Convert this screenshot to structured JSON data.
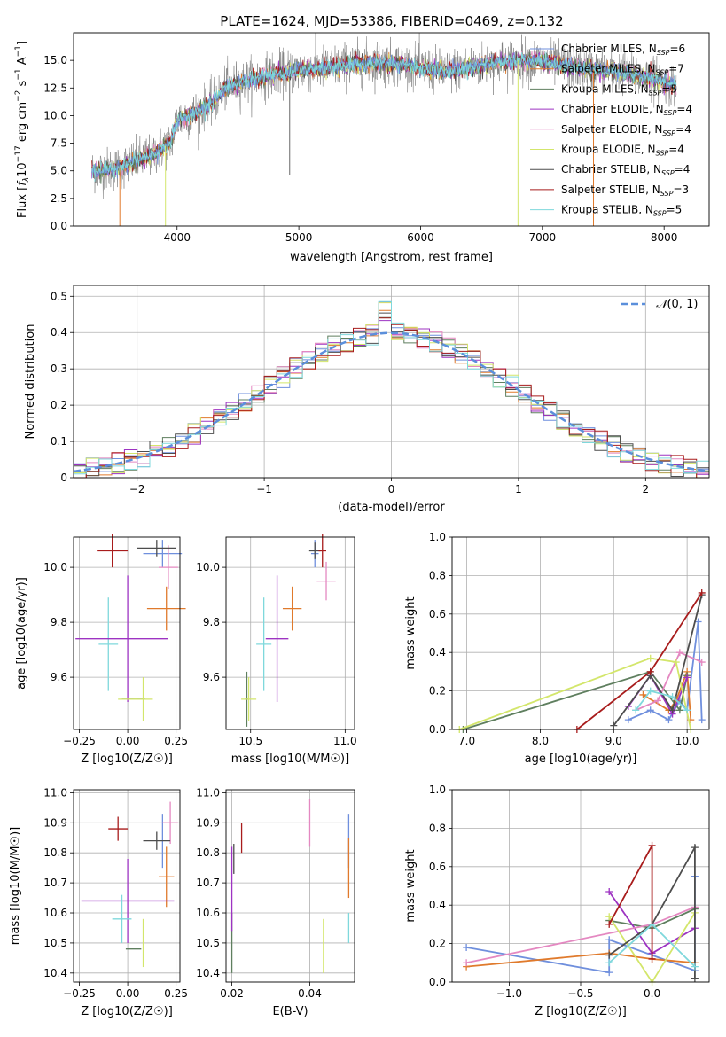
{
  "figure_title": "PLATE=1624, MJD=53386, FIBERID=0469, z=0.132",
  "colors": {
    "CM": "#6f8fdd",
    "SM": "#e07a2c",
    "KM": "#5f7f5f",
    "CE": "#9d33c2",
    "SE": "#e488c1",
    "KE": "#d3e66b",
    "CS": "#4d4d4d",
    "SS": "#a81c1c",
    "KS": "#7fd8dc",
    "norm": "#5b8fdb",
    "grid": "#b0b0b0"
  },
  "chart_data": [
    {
      "id": "spectrum",
      "type": "line",
      "xlabel": "wavelength [Angstrom, rest frame]",
      "ylabel": "Flux [f_λ 10^-17 erg cm^-2 s^-1 A^-1]",
      "xlim": [
        3150,
        8370
      ],
      "ylim": [
        0,
        17.5
      ],
      "xticks": [
        4000,
        5000,
        6000,
        7000,
        8000
      ],
      "yticks": [
        0.0,
        2.5,
        5.0,
        7.5,
        10.0,
        12.5,
        15.0
      ],
      "grid": false,
      "legend": "top-right",
      "series": [
        {
          "name": "Chabrier MILES, N_SSP=6",
          "color_key": "CM"
        },
        {
          "name": "Salpeter MILES, N_SSP=7",
          "color_key": "SM"
        },
        {
          "name": "Kroupa MILES, N_SSP=5",
          "color_key": "KM"
        },
        {
          "name": "Chabrier ELODIE, N_SSP=4",
          "color_key": "CE"
        },
        {
          "name": "Salpeter ELODIE, N_SSP=4",
          "color_key": "SE"
        },
        {
          "name": "Kroupa ELODIE, N_SSP=4",
          "color_key": "KE"
        },
        {
          "name": "Chabrier STELIB, N_SSP=4",
          "color_key": "CS"
        },
        {
          "name": "Salpeter STELIB, N_SSP=3",
          "color_key": "SS"
        },
        {
          "name": "Kroupa STELIB, N_SSP=5",
          "color_key": "KS"
        }
      ],
      "continuum": [
        [
          3300,
          5.0
        ],
        [
          3500,
          5.2
        ],
        [
          3700,
          6.0
        ],
        [
          3800,
          6.5
        ],
        [
          3950,
          7.6
        ],
        [
          4000,
          9.6
        ],
        [
          4150,
          10.2
        ],
        [
          4300,
          11.2
        ],
        [
          4400,
          12.6
        ],
        [
          4600,
          13.2
        ],
        [
          4800,
          13.8
        ],
        [
          5000,
          14.1
        ],
        [
          5200,
          14.3
        ],
        [
          5400,
          14.6
        ],
        [
          5600,
          14.8
        ],
        [
          5800,
          14.7
        ],
        [
          6000,
          14.3
        ],
        [
          6200,
          14.0
        ],
        [
          6500,
          14.6
        ],
        [
          6800,
          15.0
        ],
        [
          7000,
          14.9
        ],
        [
          7300,
          14.3
        ],
        [
          7600,
          14.0
        ],
        [
          7900,
          13.4
        ],
        [
          8100,
          12.7
        ]
      ]
    },
    {
      "id": "residuals",
      "type": "histogram",
      "xlabel": "(data-model)/error",
      "ylabel": "Normed distribution",
      "xlim": [
        -2.5,
        2.5
      ],
      "ylim": [
        0,
        0.53
      ],
      "xticks": [
        -2,
        -1,
        0,
        1,
        2
      ],
      "yticks": [
        0.0,
        0.1,
        0.2,
        0.3,
        0.4,
        0.5
      ],
      "grid": true,
      "legend": "top-right",
      "legend_label": "N(0,1)",
      "bin_width": 0.1,
      "reference_curve": "gaussian mean 0 sigma 1"
    },
    {
      "id": "age_vs_Z",
      "type": "errorbar",
      "xlabel": "Z [log10(Z/Z☉)]",
      "ylabel": "age [log10(age/yr)]",
      "xlim": [
        -0.28,
        0.27
      ],
      "ylim": [
        9.41,
        10.11
      ],
      "xticks": [
        -0.25,
        0.0,
        0.25
      ],
      "yticks": [
        9.6,
        9.8,
        10.0
      ],
      "grid": true,
      "points": [
        {
          "k": "CM",
          "x": 0.18,
          "y": 10.05,
          "xe": 0.1,
          "ye": 0.05
        },
        {
          "k": "SM",
          "x": 0.2,
          "y": 9.85,
          "xe": 0.1,
          "ye": 0.08
        },
        {
          "k": "KM",
          "x": 0.03,
          "y": 9.52,
          "xe": 0.06,
          "ye": 0.0
        },
        {
          "k": "CE",
          "x": 0.0,
          "y": 9.74,
          "xe": 0.0,
          "ye": 0.23
        },
        {
          "k": "SE",
          "x": 0.21,
          "y": 10.0,
          "xe": 0.05,
          "ye": 0.08
        },
        {
          "k": "KE",
          "x": 0.08,
          "y": 9.52,
          "xe": 0.05,
          "ye": 0.08
        },
        {
          "k": "CS",
          "x": 0.15,
          "y": 10.07,
          "xe": 0.1,
          "ye": 0.03
        },
        {
          "k": "SS",
          "x": -0.08,
          "y": 10.06,
          "xe": 0.08,
          "ye": 0.06
        },
        {
          "k": "KS",
          "x": -0.1,
          "y": 9.72,
          "xe": 0.05,
          "ye": 0.17
        },
        {
          "k": "CE",
          "x": -0.03,
          "y": 9.74,
          "xe": 0.24,
          "ye": 0.0
        },
        {
          "k": "KE",
          "x": 0.0,
          "y": 9.52,
          "xe": 0.05,
          "ye": 0.0
        }
      ]
    },
    {
      "id": "age_vs_mass",
      "type": "errorbar",
      "xlabel": "mass [log10(M/M☉)]",
      "ylabel": "",
      "xlim": [
        10.37,
        11.05
      ],
      "ylim": [
        9.41,
        10.11
      ],
      "xticks": [
        10.5,
        11.0
      ],
      "yticks": [
        9.6,
        9.8,
        10.0
      ],
      "grid": true,
      "points": [
        {
          "k": "CM",
          "x": 10.84,
          "y": 10.05,
          "xe": 0.02,
          "ye": 0.05
        },
        {
          "k": "SM",
          "x": 10.72,
          "y": 9.85,
          "xe": 0.05,
          "ye": 0.08
        },
        {
          "k": "KM",
          "x": 10.48,
          "y": 9.52,
          "xe": 0.01,
          "ye": 0.1
        },
        {
          "k": "CE",
          "x": 10.64,
          "y": 9.74,
          "xe": 0.06,
          "ye": 0.23
        },
        {
          "k": "SE",
          "x": 10.9,
          "y": 9.95,
          "xe": 0.05,
          "ye": 0.07
        },
        {
          "k": "KE",
          "x": 10.49,
          "y": 9.52,
          "xe": 0.04,
          "ye": 0.08
        },
        {
          "k": "CS",
          "x": 10.84,
          "y": 10.06,
          "xe": 0.03,
          "ye": 0.03
        },
        {
          "k": "SS",
          "x": 10.88,
          "y": 10.06,
          "xe": 0.02,
          "ye": 0.06
        },
        {
          "k": "KS",
          "x": 10.57,
          "y": 9.72,
          "xe": 0.04,
          "ye": 0.17
        }
      ]
    },
    {
      "id": "massweight_vs_age",
      "type": "line",
      "xlabel": "age [log10(age/yr)]",
      "ylabel": "mass weight",
      "xlim": [
        6.8,
        10.3
      ],
      "ylim": [
        0.0,
        1.0
      ],
      "xticks": [
        7,
        8,
        9,
        10
      ],
      "yticks": [
        0.0,
        0.2,
        0.4,
        0.6,
        0.8,
        1.0
      ],
      "grid": true,
      "series": [
        {
          "k": "CM",
          "pts": [
            [
              9.2,
              0.05
            ],
            [
              9.5,
              0.1
            ],
            [
              9.75,
              0.05
            ],
            [
              9.9,
              0.15
            ],
            [
              10.0,
              0.1
            ],
            [
              10.15,
              0.56
            ],
            [
              10.2,
              0.05
            ]
          ]
        },
        {
          "k": "SM",
          "pts": [
            [
              9.4,
              0.18
            ],
            [
              9.75,
              0.1
            ],
            [
              9.85,
              0.15
            ],
            [
              10.0,
              0.3
            ],
            [
              10.05,
              0.05
            ]
          ]
        },
        {
          "k": "KM",
          "pts": [
            [
              6.95,
              0.0
            ],
            [
              9.5,
              0.3
            ],
            [
              9.9,
              0.1
            ],
            [
              10.0,
              0.28
            ]
          ]
        },
        {
          "k": "CE",
          "pts": [
            [
              9.2,
              0.12
            ],
            [
              9.5,
              0.28
            ],
            [
              9.8,
              0.08
            ],
            [
              10.0,
              0.27
            ]
          ]
        },
        {
          "k": "SE",
          "pts": [
            [
              9.3,
              0.1
            ],
            [
              9.6,
              0.15
            ],
            [
              9.9,
              0.4
            ],
            [
              10.2,
              0.35
            ]
          ]
        },
        {
          "k": "KE",
          "pts": [
            [
              6.9,
              0.0
            ],
            [
              9.5,
              0.37
            ],
            [
              9.85,
              0.35
            ],
            [
              10.05,
              0.0
            ]
          ]
        },
        {
          "k": "CS",
          "pts": [
            [
              9.0,
              0.02
            ],
            [
              9.5,
              0.28
            ],
            [
              9.8,
              0.1
            ],
            [
              10.2,
              0.7
            ]
          ]
        },
        {
          "k": "SS",
          "pts": [
            [
              8.5,
              0.0
            ],
            [
              9.5,
              0.3
            ],
            [
              10.2,
              0.71
            ]
          ]
        },
        {
          "k": "KS",
          "pts": [
            [
              9.3,
              0.1
            ],
            [
              9.5,
              0.2
            ],
            [
              9.8,
              0.17
            ],
            [
              10.0,
              0.1
            ]
          ]
        }
      ]
    },
    {
      "id": "mass_vs_Z",
      "type": "errorbar",
      "xlabel": "Z [log10(Z/Z☉)]",
      "ylabel": "mass [log10(M/M☉)]",
      "xlim": [
        -0.28,
        0.27
      ],
      "ylim": [
        10.37,
        11.01
      ],
      "xticks": [
        -0.25,
        0.0,
        0.25
      ],
      "yticks": [
        10.4,
        10.5,
        10.6,
        10.7,
        10.8,
        10.9,
        11.0
      ],
      "grid": true,
      "points": [
        {
          "k": "CM",
          "x": 0.18,
          "y": 10.84,
          "xe": 0.0,
          "ye": 0.09
        },
        {
          "k": "SM",
          "x": 0.2,
          "y": 10.72,
          "xe": 0.04,
          "ye": 0.1
        },
        {
          "k": "KM",
          "x": 0.03,
          "y": 10.48,
          "xe": 0.04,
          "ye": 0.0
        },
        {
          "k": "CE",
          "x": 0.0,
          "y": 10.64,
          "xe": 0.24,
          "ye": 0.14
        },
        {
          "k": "SE",
          "x": 0.22,
          "y": 10.9,
          "xe": 0.04,
          "ye": 0.07
        },
        {
          "k": "KE",
          "x": 0.08,
          "y": 10.5,
          "xe": 0.0,
          "ye": 0.08
        },
        {
          "k": "CS",
          "x": 0.15,
          "y": 10.84,
          "xe": 0.07,
          "ye": 0.03
        },
        {
          "k": "SS",
          "x": -0.05,
          "y": 10.88,
          "xe": 0.05,
          "ye": 0.04
        },
        {
          "k": "KS",
          "x": -0.03,
          "y": 10.58,
          "xe": 0.05,
          "ye": 0.08
        }
      ]
    },
    {
      "id": "mass_vs_ebv",
      "type": "errorbar",
      "xlabel": "E(B-V)",
      "ylabel": "",
      "xlim": [
        0.0185,
        0.0515
      ],
      "ylim": [
        10.37,
        11.01
      ],
      "xticks": [
        0.02,
        0.04
      ],
      "yticks": [
        10.4,
        10.5,
        10.6,
        10.7,
        10.8,
        10.9,
        11.0
      ],
      "grid": true,
      "points": [
        {
          "k": "CM",
          "x": 0.05,
          "y": 10.84,
          "xe": 0,
          "ye": 0.09
        },
        {
          "k": "SM",
          "x": 0.05,
          "y": 10.75,
          "xe": 0,
          "ye": 0.1
        },
        {
          "k": "KM",
          "x": 0.02,
          "y": 10.5,
          "xe": 0,
          "ye": 0.1
        },
        {
          "k": "CE",
          "x": 0.02,
          "y": 10.68,
          "xe": 0,
          "ye": 0.14
        },
        {
          "k": "SE",
          "x": 0.04,
          "y": 10.9,
          "xe": 0,
          "ye": 0.08
        },
        {
          "k": "KE",
          "x": 0.0435,
          "y": 10.49,
          "xe": 0,
          "ye": 0.09
        },
        {
          "k": "CS",
          "x": 0.0205,
          "y": 10.78,
          "xe": 0,
          "ye": 0.05
        },
        {
          "k": "SS",
          "x": 0.0225,
          "y": 10.85,
          "xe": 0,
          "ye": 0.05
        },
        {
          "k": "KS",
          "x": 0.05,
          "y": 10.55,
          "xe": 0,
          "ye": 0.05
        }
      ]
    },
    {
      "id": "massweight_vs_Z",
      "type": "line",
      "xlabel": "Z [log10(Z/Z☉)]",
      "ylabel": "mass weight",
      "xlim": [
        -1.4,
        0.4
      ],
      "ylim": [
        0.0,
        1.0
      ],
      "xticks": [
        -1.0,
        -0.5,
        0.0
      ],
      "yticks": [
        0.0,
        0.2,
        0.4,
        0.6,
        0.8,
        1.0
      ],
      "grid": true,
      "series": [
        {
          "k": "CM",
          "pts": [
            [
              -1.3,
              0.18
            ],
            [
              -0.3,
              0.05
            ],
            [
              -0.3,
              0.22
            ],
            [
              0.3,
              0.06
            ],
            [
              0.3,
              0.55
            ]
          ]
        },
        {
          "k": "SM",
          "pts": [
            [
              -1.3,
              0.08
            ],
            [
              -0.3,
              0.15
            ],
            [
              0.0,
              0.12
            ],
            [
              0.3,
              0.1
            ]
          ]
        },
        {
          "k": "KM",
          "pts": [
            [
              -0.3,
              0.32
            ],
            [
              0.0,
              0.28
            ],
            [
              0.3,
              0.38
            ]
          ]
        },
        {
          "k": "CE",
          "pts": [
            [
              -0.3,
              0.47
            ],
            [
              0.0,
              0.15
            ],
            [
              0.3,
              0.28
            ]
          ]
        },
        {
          "k": "SE",
          "pts": [
            [
              -1.3,
              0.1
            ],
            [
              0.0,
              0.3
            ],
            [
              0.3,
              0.39
            ]
          ]
        },
        {
          "k": "KE",
          "pts": [
            [
              -0.3,
              0.34
            ],
            [
              0.0,
              0.0
            ],
            [
              0.3,
              0.36
            ]
          ]
        },
        {
          "k": "CS",
          "pts": [
            [
              -0.3,
              0.14
            ],
            [
              0.0,
              0.3
            ],
            [
              0.3,
              0.7
            ],
            [
              0.3,
              0.02
            ]
          ]
        },
        {
          "k": "SS",
          "pts": [
            [
              -0.3,
              0.3
            ],
            [
              0.0,
              0.71
            ],
            [
              0.0,
              0.12
            ]
          ]
        },
        {
          "k": "KS",
          "pts": [
            [
              -0.3,
              0.1
            ],
            [
              0.0,
              0.3
            ],
            [
              0.3,
              0.08
            ]
          ]
        }
      ]
    }
  ]
}
